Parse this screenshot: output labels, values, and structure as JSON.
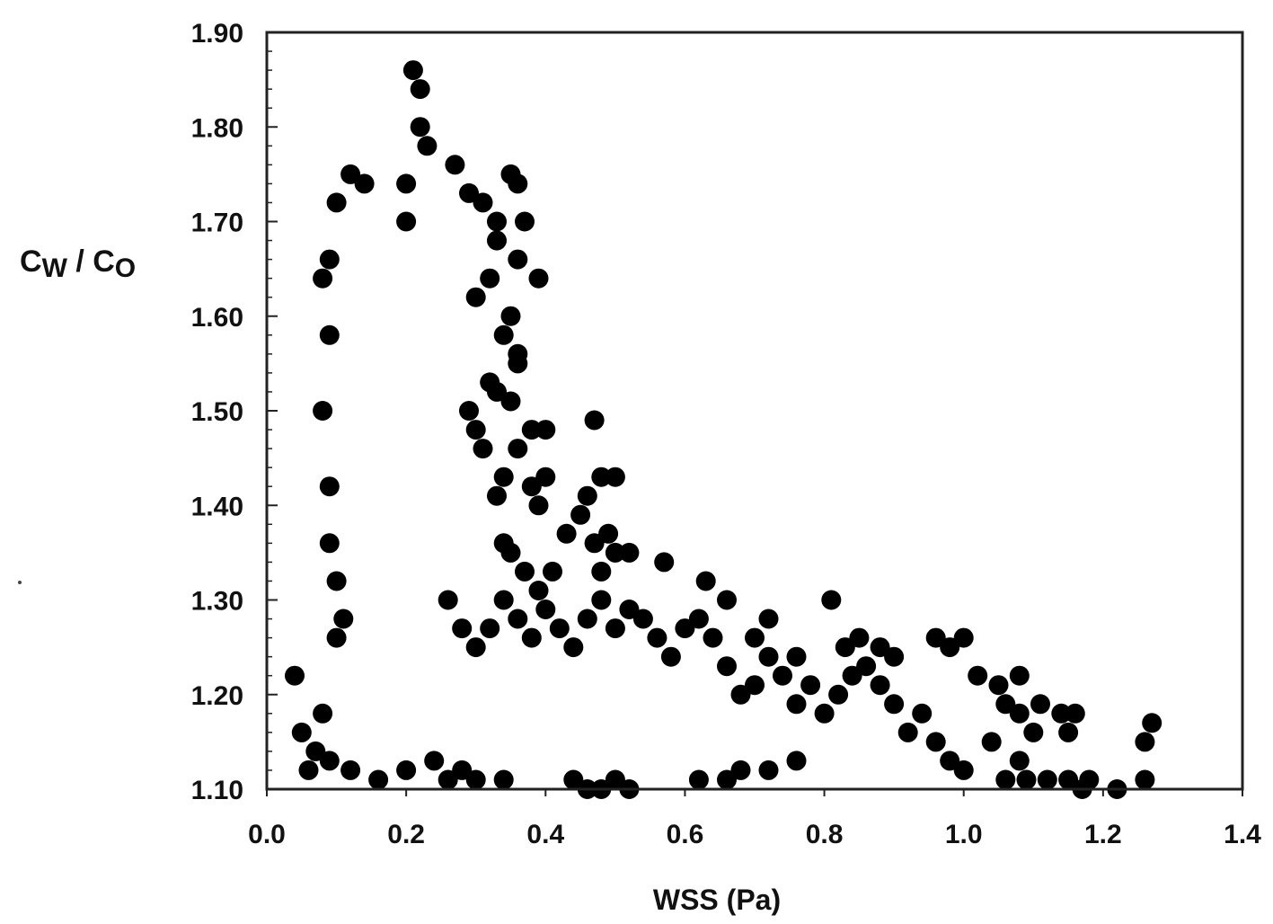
{
  "chart_data": {
    "type": "scatter",
    "title": "",
    "xlabel": "WSS (Pa)",
    "ylabel": {
      "main1": "C",
      "sub1": "W",
      "sep": " / ",
      "main2": "C",
      "sub2": "O"
    },
    "xlim": [
      0.0,
      1.4
    ],
    "ylim": [
      1.1,
      1.9
    ],
    "x_ticks": [
      "0.0",
      "0.2",
      "0.4",
      "0.6",
      "0.8",
      "1.0",
      "1.2",
      "1.4"
    ],
    "y_ticks": [
      "1.10",
      "1.20",
      "1.30",
      "1.40",
      "1.50",
      "1.60",
      "1.70",
      "1.80",
      "1.90"
    ],
    "grid": false,
    "legend": "none",
    "marker": "filled circle",
    "marker_color": "#000000",
    "series": [
      {
        "points": [
          [
            0.04,
            1.22
          ],
          [
            0.05,
            1.16
          ],
          [
            0.06,
            1.12
          ],
          [
            0.07,
            1.14
          ],
          [
            0.08,
            1.18
          ],
          [
            0.09,
            1.13
          ],
          [
            0.1,
            1.26
          ],
          [
            0.1,
            1.72
          ],
          [
            0.12,
            1.75
          ],
          [
            0.14,
            1.74
          ],
          [
            0.09,
            1.66
          ],
          [
            0.08,
            1.64
          ],
          [
            0.09,
            1.58
          ],
          [
            0.08,
            1.5
          ],
          [
            0.09,
            1.42
          ],
          [
            0.09,
            1.36
          ],
          [
            0.1,
            1.32
          ],
          [
            0.11,
            1.28
          ],
          [
            0.21,
            1.86
          ],
          [
            0.22,
            1.84
          ],
          [
            0.22,
            1.8
          ],
          [
            0.23,
            1.78
          ],
          [
            0.2,
            1.74
          ],
          [
            0.2,
            1.7
          ],
          [
            0.27,
            1.76
          ],
          [
            0.29,
            1.73
          ],
          [
            0.31,
            1.72
          ],
          [
            0.33,
            1.7
          ],
          [
            0.35,
            1.75
          ],
          [
            0.36,
            1.74
          ],
          [
            0.37,
            1.7
          ],
          [
            0.36,
            1.66
          ],
          [
            0.39,
            1.64
          ],
          [
            0.33,
            1.68
          ],
          [
            0.32,
            1.64
          ],
          [
            0.3,
            1.62
          ],
          [
            0.35,
            1.6
          ],
          [
            0.34,
            1.58
          ],
          [
            0.36,
            1.56
          ],
          [
            0.36,
            1.55
          ],
          [
            0.32,
            1.53
          ],
          [
            0.33,
            1.52
          ],
          [
            0.35,
            1.51
          ],
          [
            0.29,
            1.5
          ],
          [
            0.3,
            1.48
          ],
          [
            0.31,
            1.46
          ],
          [
            0.36,
            1.46
          ],
          [
            0.38,
            1.48
          ],
          [
            0.4,
            1.48
          ],
          [
            0.4,
            1.43
          ],
          [
            0.38,
            1.42
          ],
          [
            0.34,
            1.43
          ],
          [
            0.33,
            1.41
          ],
          [
            0.39,
            1.4
          ],
          [
            0.47,
            1.49
          ],
          [
            0.48,
            1.43
          ],
          [
            0.5,
            1.43
          ],
          [
            0.46,
            1.41
          ],
          [
            0.45,
            1.39
          ],
          [
            0.43,
            1.37
          ],
          [
            0.47,
            1.36
          ],
          [
            0.49,
            1.37
          ],
          [
            0.5,
            1.35
          ],
          [
            0.52,
            1.35
          ],
          [
            0.48,
            1.33
          ],
          [
            0.41,
            1.33
          ],
          [
            0.39,
            1.31
          ],
          [
            0.37,
            1.33
          ],
          [
            0.35,
            1.35
          ],
          [
            0.34,
            1.36
          ],
          [
            0.57,
            1.34
          ],
          [
            0.63,
            1.32
          ],
          [
            0.66,
            1.3
          ],
          [
            0.72,
            1.28
          ],
          [
            0.7,
            1.26
          ],
          [
            0.81,
            1.3
          ],
          [
            0.76,
            1.24
          ],
          [
            0.83,
            1.25
          ],
          [
            0.85,
            1.26
          ],
          [
            0.88,
            1.25
          ],
          [
            0.9,
            1.24
          ],
          [
            0.96,
            1.26
          ],
          [
            0.98,
            1.25
          ],
          [
            1.0,
            1.26
          ],
          [
            1.02,
            1.22
          ],
          [
            1.05,
            1.21
          ],
          [
            1.08,
            1.22
          ],
          [
            1.06,
            1.19
          ],
          [
            1.08,
            1.18
          ],
          [
            1.11,
            1.19
          ],
          [
            1.1,
            1.16
          ],
          [
            1.14,
            1.18
          ],
          [
            1.16,
            1.18
          ],
          [
            1.15,
            1.16
          ],
          [
            1.04,
            1.15
          ],
          [
            1.08,
            1.13
          ],
          [
            1.06,
            1.11
          ],
          [
            1.09,
            1.11
          ],
          [
            1.12,
            1.11
          ],
          [
            1.15,
            1.11
          ],
          [
            1.18,
            1.11
          ],
          [
            1.17,
            1.1
          ],
          [
            1.22,
            1.1
          ],
          [
            1.26,
            1.11
          ],
          [
            1.27,
            1.17
          ],
          [
            1.26,
            1.15
          ],
          [
            1.0,
            1.12
          ],
          [
            0.98,
            1.13
          ],
          [
            0.96,
            1.15
          ],
          [
            0.94,
            1.18
          ],
          [
            0.92,
            1.16
          ],
          [
            0.9,
            1.19
          ],
          [
            0.88,
            1.21
          ],
          [
            0.86,
            1.23
          ],
          [
            0.84,
            1.22
          ],
          [
            0.82,
            1.2
          ],
          [
            0.8,
            1.18
          ],
          [
            0.78,
            1.21
          ],
          [
            0.76,
            1.19
          ],
          [
            0.74,
            1.22
          ],
          [
            0.72,
            1.24
          ],
          [
            0.7,
            1.21
          ],
          [
            0.68,
            1.2
          ],
          [
            0.66,
            1.23
          ],
          [
            0.64,
            1.26
          ],
          [
            0.62,
            1.28
          ],
          [
            0.6,
            1.27
          ],
          [
            0.58,
            1.24
          ],
          [
            0.56,
            1.26
          ],
          [
            0.54,
            1.28
          ],
          [
            0.52,
            1.29
          ],
          [
            0.5,
            1.27
          ],
          [
            0.48,
            1.3
          ],
          [
            0.46,
            1.28
          ],
          [
            0.44,
            1.25
          ],
          [
            0.42,
            1.27
          ],
          [
            0.4,
            1.29
          ],
          [
            0.38,
            1.26
          ],
          [
            0.36,
            1.28
          ],
          [
            0.34,
            1.3
          ],
          [
            0.32,
            1.27
          ],
          [
            0.3,
            1.25
          ],
          [
            0.28,
            1.27
          ],
          [
            0.26,
            1.3
          ],
          [
            0.3,
            1.11
          ],
          [
            0.34,
            1.11
          ],
          [
            0.44,
            1.11
          ],
          [
            0.46,
            1.1
          ],
          [
            0.48,
            1.1
          ],
          [
            0.5,
            1.11
          ],
          [
            0.52,
            1.1
          ],
          [
            0.62,
            1.11
          ],
          [
            0.66,
            1.11
          ],
          [
            0.68,
            1.12
          ],
          [
            0.72,
            1.12
          ],
          [
            0.76,
            1.13
          ],
          [
            0.12,
            1.12
          ],
          [
            0.16,
            1.11
          ],
          [
            0.2,
            1.12
          ],
          [
            0.24,
            1.13
          ],
          [
            0.26,
            1.11
          ],
          [
            0.28,
            1.12
          ]
        ]
      }
    ]
  }
}
